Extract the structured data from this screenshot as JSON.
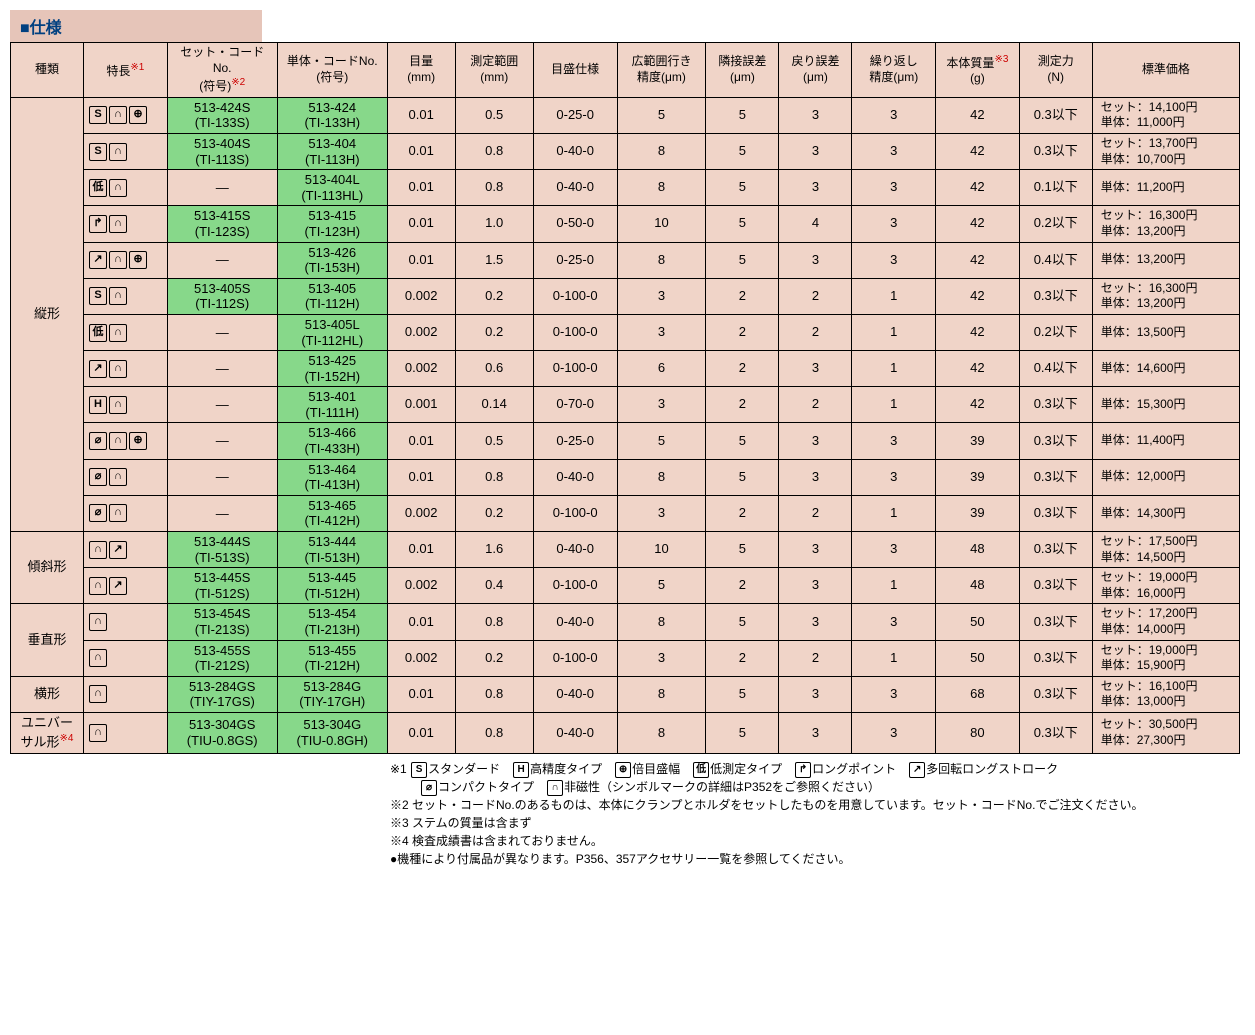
{
  "title": "■仕様",
  "headers": {
    "type": "種類",
    "features": "特長",
    "features_sup": "※1",
    "setcode": "セット・コードNo.\n(符号)",
    "setcode_sup": "※2",
    "unitcode": "単体・コードNo.\n(符号)",
    "grad": "目量\n(mm)",
    "range": "測定範囲\n(mm)",
    "dial": "目盛仕様",
    "wide": "広範囲行き\n精度(μm)",
    "adj": "隣接誤差\n(μm)",
    "ret": "戻り誤差\n(μm)",
    "rep": "繰り返し\n精度(μm)",
    "mass": "本体質量",
    "mass_sup": "※3",
    "mass_unit": "(g)",
    "force": "測定力\n(N)",
    "price": "標準価格"
  },
  "categories": [
    {
      "name": "縦形",
      "rowspan": 12
    },
    {
      "name": "傾斜形",
      "rowspan": 2
    },
    {
      "name": "垂直形",
      "rowspan": 2
    },
    {
      "name": "横形",
      "rowspan": 1
    },
    {
      "name": "ユニバー\nサル形",
      "name_sup": "※4",
      "rowspan": 1
    }
  ],
  "rows": [
    {
      "cat": 0,
      "icons": [
        "S",
        "∩",
        "⊕"
      ],
      "set": "513-424S\n(TI-133S)",
      "unit": "513-424\n(TI-133H)",
      "grad": "0.01",
      "range": "0.5",
      "dial": "0-25-0",
      "wide": "5",
      "adj": "5",
      "ret": "3",
      "rep": "3",
      "mass": "42",
      "force": "0.3以下",
      "price": [
        "セット：14,100円",
        "単体：11,000円"
      ]
    },
    {
      "cat": 0,
      "icons": [
        "S",
        "∩"
      ],
      "set": "513-404S\n(TI-113S)",
      "unit": "513-404\n(TI-113H)",
      "grad": "0.01",
      "range": "0.8",
      "dial": "0-40-0",
      "wide": "8",
      "adj": "5",
      "ret": "3",
      "rep": "3",
      "mass": "42",
      "force": "0.3以下",
      "price": [
        "セット：13,700円",
        "単体：10,700円"
      ]
    },
    {
      "cat": 0,
      "icons": [
        "低",
        "∩"
      ],
      "set": "—",
      "setgreen": false,
      "unit": "513-404L\n(TI-113HL)",
      "grad": "0.01",
      "range": "0.8",
      "dial": "0-40-0",
      "wide": "8",
      "adj": "5",
      "ret": "3",
      "rep": "3",
      "mass": "42",
      "force": "0.1以下",
      "price": [
        "単体：11,200円"
      ]
    },
    {
      "cat": 0,
      "icons": [
        "↱",
        "∩"
      ],
      "set": "513-415S\n(TI-123S)",
      "unit": "513-415\n(TI-123H)",
      "grad": "0.01",
      "range": "1.0",
      "dial": "0-50-0",
      "wide": "10",
      "adj": "5",
      "ret": "4",
      "rep": "3",
      "mass": "42",
      "force": "0.2以下",
      "price": [
        "セット：16,300円",
        "単体：13,200円"
      ]
    },
    {
      "cat": 0,
      "icons": [
        "↗",
        "∩",
        "⊕"
      ],
      "set": "—",
      "setgreen": false,
      "unit": "513-426\n(TI-153H)",
      "grad": "0.01",
      "range": "1.5",
      "dial": "0-25-0",
      "wide": "8",
      "adj": "5",
      "ret": "3",
      "rep": "3",
      "mass": "42",
      "force": "0.4以下",
      "price": [
        "単体：13,200円"
      ]
    },
    {
      "cat": 0,
      "icons": [
        "S",
        "∩"
      ],
      "set": "513-405S\n(TI-112S)",
      "unit": "513-405\n(TI-112H)",
      "grad": "0.002",
      "range": "0.2",
      "dial": "0-100-0",
      "wide": "3",
      "adj": "2",
      "ret": "2",
      "rep": "1",
      "mass": "42",
      "force": "0.3以下",
      "price": [
        "セット：16,300円",
        "単体：13,200円"
      ]
    },
    {
      "cat": 0,
      "icons": [
        "低",
        "∩"
      ],
      "set": "—",
      "setgreen": false,
      "unit": "513-405L\n(TI-112HL)",
      "grad": "0.002",
      "range": "0.2",
      "dial": "0-100-0",
      "wide": "3",
      "adj": "2",
      "ret": "2",
      "rep": "1",
      "mass": "42",
      "force": "0.2以下",
      "price": [
        "単体：13,500円"
      ]
    },
    {
      "cat": 0,
      "icons": [
        "↗",
        "∩"
      ],
      "set": "—",
      "setgreen": false,
      "unit": "513-425\n(TI-152H)",
      "grad": "0.002",
      "range": "0.6",
      "dial": "0-100-0",
      "wide": "6",
      "adj": "2",
      "ret": "3",
      "rep": "1",
      "mass": "42",
      "force": "0.4以下",
      "price": [
        "単体：14,600円"
      ]
    },
    {
      "cat": 0,
      "icons": [
        "H",
        "∩"
      ],
      "set": "—",
      "setgreen": false,
      "unit": "513-401\n(TI-111H)",
      "grad": "0.001",
      "range": "0.14",
      "dial": "0-70-0",
      "wide": "3",
      "adj": "2",
      "ret": "2",
      "rep": "1",
      "mass": "42",
      "force": "0.3以下",
      "price": [
        "単体：15,300円"
      ]
    },
    {
      "cat": 0,
      "icons": [
        "⌀",
        "∩",
        "⊕"
      ],
      "set": "—",
      "setgreen": false,
      "unit": "513-466\n(TI-433H)",
      "grad": "0.01",
      "range": "0.5",
      "dial": "0-25-0",
      "wide": "5",
      "adj": "5",
      "ret": "3",
      "rep": "3",
      "mass": "39",
      "force": "0.3以下",
      "price": [
        "単体：11,400円"
      ]
    },
    {
      "cat": 0,
      "icons": [
        "⌀",
        "∩"
      ],
      "set": "—",
      "setgreen": false,
      "unit": "513-464\n(TI-413H)",
      "grad": "0.01",
      "range": "0.8",
      "dial": "0-40-0",
      "wide": "8",
      "adj": "5",
      "ret": "3",
      "rep": "3",
      "mass": "39",
      "force": "0.3以下",
      "price": [
        "単体：12,000円"
      ]
    },
    {
      "cat": 0,
      "icons": [
        "⌀",
        "∩"
      ],
      "set": "—",
      "setgreen": false,
      "unit": "513-465\n(TI-412H)",
      "grad": "0.002",
      "range": "0.2",
      "dial": "0-100-0",
      "wide": "3",
      "adj": "2",
      "ret": "2",
      "rep": "1",
      "mass": "39",
      "force": "0.3以下",
      "price": [
        "単体：14,300円"
      ]
    },
    {
      "cat": 1,
      "icons": [
        "∩",
        "↗"
      ],
      "set": "513-444S\n(TI-513S)",
      "unit": "513-444\n(TI-513H)",
      "grad": "0.01",
      "range": "1.6",
      "dial": "0-40-0",
      "wide": "10",
      "adj": "5",
      "ret": "3",
      "rep": "3",
      "mass": "48",
      "force": "0.3以下",
      "price": [
        "セット：17,500円",
        "単体：14,500円"
      ]
    },
    {
      "cat": 1,
      "icons": [
        "∩",
        "↗"
      ],
      "set": "513-445S\n(TI-512S)",
      "unit": "513-445\n(TI-512H)",
      "grad": "0.002",
      "range": "0.4",
      "dial": "0-100-0",
      "wide": "5",
      "adj": "2",
      "ret": "3",
      "rep": "1",
      "mass": "48",
      "force": "0.3以下",
      "price": [
        "セット：19,000円",
        "単体：16,000円"
      ]
    },
    {
      "cat": 2,
      "icons": [
        "∩"
      ],
      "set": "513-454S\n(TI-213S)",
      "unit": "513-454\n(TI-213H)",
      "grad": "0.01",
      "range": "0.8",
      "dial": "0-40-0",
      "wide": "8",
      "adj": "5",
      "ret": "3",
      "rep": "3",
      "mass": "50",
      "force": "0.3以下",
      "price": [
        "セット：17,200円",
        "単体：14,000円"
      ]
    },
    {
      "cat": 2,
      "icons": [
        "∩"
      ],
      "set": "513-455S\n(TI-212S)",
      "unit": "513-455\n(TI-212H)",
      "grad": "0.002",
      "range": "0.2",
      "dial": "0-100-0",
      "wide": "3",
      "adj": "2",
      "ret": "2",
      "rep": "1",
      "mass": "50",
      "force": "0.3以下",
      "price": [
        "セット：19,000円",
        "単体：15,900円"
      ]
    },
    {
      "cat": 3,
      "icons": [
        "∩"
      ],
      "set": "513-284GS\n(TIY-17GS)",
      "unit": "513-284G\n(TIY-17GH)",
      "grad": "0.01",
      "range": "0.8",
      "dial": "0-40-0",
      "wide": "8",
      "adj": "5",
      "ret": "3",
      "rep": "3",
      "mass": "68",
      "force": "0.3以下",
      "price": [
        "セット：16,100円",
        "単体：13,000円"
      ]
    },
    {
      "cat": 4,
      "icons": [
        "∩"
      ],
      "set": "513-304GS\n(TIU-0.8GS)",
      "unit": "513-304G\n(TIU-0.8GH)",
      "grad": "0.01",
      "range": "0.8",
      "dial": "0-40-0",
      "wide": "8",
      "adj": "5",
      "ret": "3",
      "rep": "3",
      "mass": "80",
      "force": "0.3以下",
      "price": [
        "セット：30,500円",
        "単体：27,300円"
      ]
    }
  ],
  "legend": {
    "n1_label": "※1",
    "n1_items": [
      {
        "icon": "S",
        "text": "スタンダード"
      },
      {
        "icon": "H",
        "text": "高精度タイプ"
      },
      {
        "icon": "⊕",
        "text": "倍目盛幅"
      },
      {
        "icon": "低",
        "text": "低測定タイプ"
      },
      {
        "icon": "↱",
        "text": "ロングポイント"
      },
      {
        "icon": "↗",
        "text": "多回転ロングストローク"
      }
    ],
    "n1_line2": [
      {
        "icon": "⌀",
        "text": "コンパクトタイプ"
      },
      {
        "icon": "∩",
        "text": "非磁性（シンボルマークの詳細はP352をご参照ください）"
      }
    ],
    "n2": "※2 セット・コードNo.のあるものは、本体にクランプとホルダをセットしたものを用意しています。セット・コードNo.でご注文ください。",
    "n3": "※3 ステムの質量は含まず",
    "n4": "※4 検査成績書は含まれておりません。",
    "n5": "●機種により付属品が異なります。P356、357アクセサリー一覧を参照してください。"
  }
}
